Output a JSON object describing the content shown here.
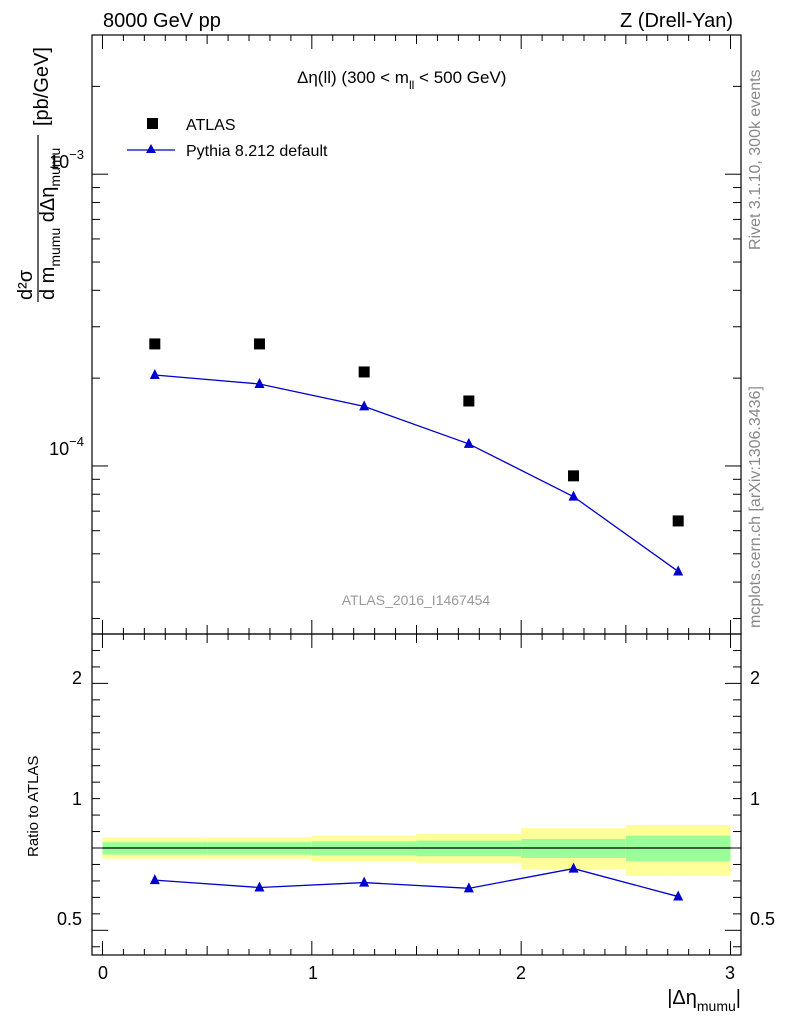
{
  "header": {
    "left": "8000 GeV pp",
    "right": "Z (Drell-Yan)"
  },
  "side": {
    "rivet": "Rivet 3.1.10,  300k events",
    "mcplots": "mcplots.cern.ch [arXiv:1306.3436]"
  },
  "chart_data": [
    {
      "type": "scatter",
      "title": "Δη(ll) (300 < m_ll < 500 GeV)",
      "title_parts": {
        "a": "Δη(ll) (300 < m",
        "sub": "ll",
        "b": " < 500 GeV)"
      },
      "analysis_label": "ATLAS_2016_I1467454",
      "ylabel_parts": {
        "num": "d²σ",
        "den_a": "d m",
        "den_sub1": "mumu",
        "den_b": " dΔη",
        "den_sub2": "mumu",
        "unit": "[pb/GeV]"
      },
      "y_scale": "log",
      "ylim": [
        2.655e-05,
        0.003
      ],
      "xlim": [
        -0.05,
        3.05
      ],
      "y_tick_labels": [
        {
          "value": 0.001,
          "base": "10",
          "exp": "−3"
        },
        {
          "value": 0.0001,
          "base": "10",
          "exp": "−4"
        }
      ],
      "legend": {
        "position": "top-left"
      },
      "x": [
        0.25,
        0.75,
        1.25,
        1.75,
        2.25,
        2.75
      ],
      "series": [
        {
          "name": "ATLAS",
          "marker": "square",
          "color": "#000000",
          "values": [
            0.000262,
            0.000262,
            0.00021,
            0.000167,
            9.25e-05,
            6.48e-05
          ]
        },
        {
          "name": "Pythia 8.212 default",
          "marker": "triangle",
          "color": "#0000cc",
          "values": [
            0.000205,
            0.000191,
            0.00016,
            0.000119,
            7.85e-05,
            4.35e-05
          ]
        }
      ]
    },
    {
      "type": "line",
      "ylabel": "Ratio to ATLAS",
      "xlabel_parts": {
        "a": "|Δη",
        "sub": "mumu",
        "b": "|"
      },
      "ylim": [
        0.35,
        2.3
      ],
      "xlim": [
        -0.05,
        3.05
      ],
      "y_tick_labels": [
        {
          "value": 0.5,
          "label": "0.5"
        },
        {
          "value": 1,
          "label": "1"
        },
        {
          "value": 2,
          "label": "2"
        }
      ],
      "x_tick_labels": [
        {
          "value": 0,
          "label": "0"
        },
        {
          "value": 1,
          "label": "1"
        },
        {
          "value": 2,
          "label": "2"
        },
        {
          "value": 3,
          "label": "3"
        }
      ],
      "bands": {
        "bins": [
          [
            0,
            0.5
          ],
          [
            0.5,
            1
          ],
          [
            1,
            1.5
          ],
          [
            1.5,
            2
          ],
          [
            2,
            2.5
          ],
          [
            2.5,
            3
          ]
        ],
        "outer": [
          [
            0.935,
            1.065
          ],
          [
            0.935,
            1.065
          ],
          [
            0.92,
            1.075
          ],
          [
            0.91,
            1.085
          ],
          [
            0.87,
            1.12
          ],
          [
            0.83,
            1.14
          ]
        ],
        "inner": [
          [
            0.96,
            1.035
          ],
          [
            0.96,
            1.035
          ],
          [
            0.955,
            1.04
          ],
          [
            0.95,
            1.045
          ],
          [
            0.94,
            1.055
          ],
          [
            0.92,
            1.075
          ]
        ],
        "outer_color": "#ffff99",
        "inner_color": "#99ff99"
      },
      "x": [
        0.25,
        0.75,
        1.25,
        1.75,
        2.25,
        2.75
      ],
      "series": [
        {
          "name": "Pythia 8.212 default",
          "color": "#0000cc",
          "values": [
            0.805,
            0.76,
            0.79,
            0.755,
            0.875,
            0.705
          ]
        }
      ]
    }
  ]
}
